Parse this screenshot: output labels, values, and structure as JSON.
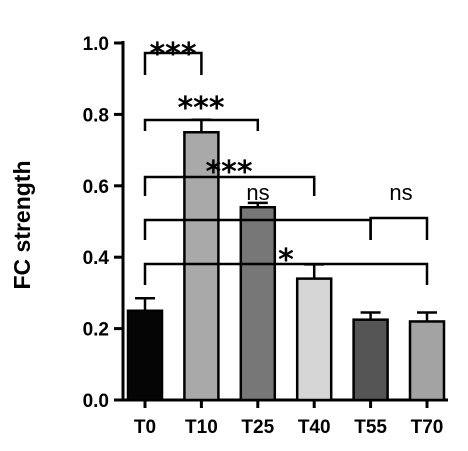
{
  "chart_data": {
    "type": "bar",
    "categories": [
      "T0",
      "T10",
      "T25",
      "T40",
      "T55",
      "T70"
    ],
    "values": [
      0.25,
      0.75,
      0.54,
      0.34,
      0.225,
      0.22
    ],
    "errors": [
      0.035,
      0.035,
      0.012,
      0.04,
      0.02,
      0.025
    ],
    "bar_colors": [
      "#050505",
      "#a9a9a9",
      "#777777",
      "#d6d6d6",
      "#555555",
      "#a3a3a3"
    ],
    "ylabel": "FC strength",
    "ylim": [
      0.0,
      1.0
    ],
    "yticks": [
      0.0,
      0.2,
      0.4,
      0.6,
      0.8,
      1.0
    ],
    "ytick_labels": [
      "0.0",
      "0.2",
      "0.4",
      "0.6",
      "0.8",
      "1.0"
    ],
    "grid": false,
    "significance": [
      {
        "from": "T0",
        "to": "T10",
        "label": "***"
      },
      {
        "from": "T0",
        "to": "T25",
        "label": "***"
      },
      {
        "from": "T0",
        "to": "T40",
        "label": "***"
      },
      {
        "from": "T0",
        "to": "T55",
        "label": "ns"
      },
      {
        "from": "T0",
        "to": "T70",
        "label": "*"
      },
      {
        "from": "T55",
        "to": "T70",
        "label": "ns"
      }
    ]
  }
}
